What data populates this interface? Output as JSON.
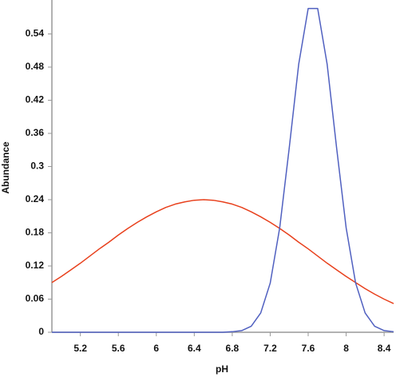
{
  "chart_data": {
    "type": "line",
    "x_label": "pH",
    "y_label": "Abundance",
    "x": [
      4.9,
      5.0,
      5.1,
      5.2,
      5.3,
      5.4,
      5.5,
      5.6,
      5.7,
      5.8,
      5.9,
      6.0,
      6.1,
      6.2,
      6.3,
      6.4,
      6.5,
      6.6,
      6.7,
      6.8,
      6.9,
      7.0,
      7.1,
      7.2,
      7.3,
      7.4,
      7.5,
      7.6,
      7.7,
      7.8,
      7.9,
      8.0,
      8.1,
      8.2,
      8.3,
      8.4,
      8.5
    ],
    "series": [
      {
        "color": "#e8401c",
        "values": [
          0.09,
          0.101,
          0.113,
          0.125,
          0.138,
          0.151,
          0.163,
          0.176,
          0.188,
          0.199,
          0.209,
          0.218,
          0.226,
          0.232,
          0.236,
          0.239,
          0.24,
          0.239,
          0.236,
          0.232,
          0.226,
          0.218,
          0.209,
          0.199,
          0.188,
          0.176,
          0.163,
          0.151,
          0.138,
          0.125,
          0.113,
          0.101,
          0.09,
          0.079,
          0.069,
          0.06,
          0.052
        ]
      },
      {
        "color": "#5060c0",
        "values": [
          0,
          0,
          0,
          0,
          0,
          0,
          0,
          0,
          0,
          0,
          0,
          0,
          0,
          0,
          0,
          0,
          0,
          0,
          0,
          0.001,
          0.003,
          0.011,
          0.035,
          0.089,
          0.189,
          0.333,
          0.485,
          0.586,
          0.586,
          0.485,
          0.333,
          0.189,
          0.089,
          0.035,
          0.011,
          0.003,
          0.001
        ]
      }
    ],
    "xlim": [
      4.9,
      8.5
    ],
    "ylim": [
      0,
      0.6
    ],
    "xticks": [
      5.2,
      5.6,
      6,
      6.4,
      6.8,
      7.2,
      7.6,
      8,
      8.4
    ],
    "yticks": [
      0,
      0.06,
      0.12,
      0.18,
      0.24,
      0.3,
      0.36,
      0.42,
      0.48,
      0.54
    ],
    "grid": false
  }
}
